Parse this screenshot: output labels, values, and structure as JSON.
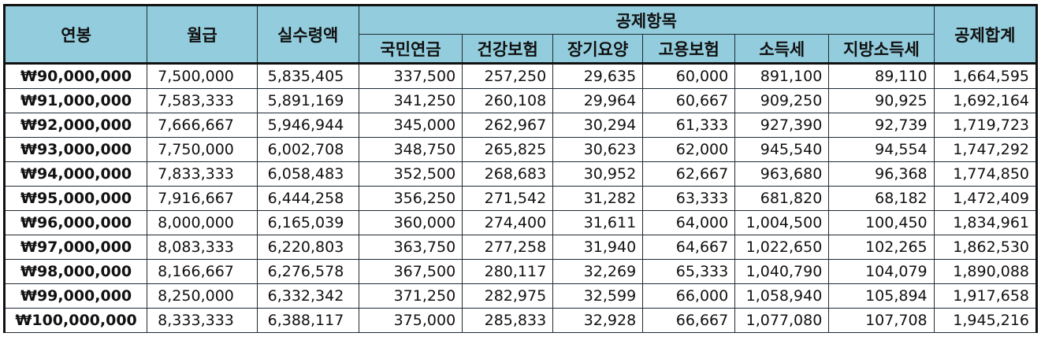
{
  "headers": {
    "salary": "연봉",
    "monthly": "월급",
    "net": "실수령액",
    "deductions_group": "공제항목",
    "national_pension": "국민연금",
    "health_insurance": "건강보험",
    "long_term_care": "장기요양",
    "employment_insurance": "고용보험",
    "income_tax": "소득세",
    "local_income_tax": "지방소득세",
    "total": "공제합계"
  },
  "rows": [
    [
      "₩90,000,000",
      "7,500,000",
      "5,835,405",
      "337,500",
      "257,250",
      "29,635",
      "60,000",
      "891,100",
      "89,110",
      "1,664,595"
    ],
    [
      "₩91,000,000",
      "7,583,333",
      "5,891,169",
      "341,250",
      "260,108",
      "29,964",
      "60,667",
      "909,250",
      "90,925",
      "1,692,164"
    ],
    [
      "₩92,000,000",
      "7,666,667",
      "5,946,944",
      "345,000",
      "262,967",
      "30,294",
      "61,333",
      "927,390",
      "92,739",
      "1,719,723"
    ],
    [
      "₩93,000,000",
      "7,750,000",
      "6,002,708",
      "348,750",
      "265,825",
      "30,623",
      "62,000",
      "945,540",
      "94,554",
      "1,747,292"
    ],
    [
      "₩94,000,000",
      "7,833,333",
      "6,058,483",
      "352,500",
      "268,683",
      "30,952",
      "62,667",
      "963,680",
      "96,368",
      "1,774,850"
    ],
    [
      "₩95,000,000",
      "7,916,667",
      "6,444,258",
      "356,250",
      "271,542",
      "31,282",
      "63,333",
      "681,820",
      "68,182",
      "1,472,409"
    ],
    [
      "₩96,000,000",
      "8,000,000",
      "6,165,039",
      "360,000",
      "274,400",
      "31,611",
      "64,000",
      "1,004,500",
      "100,450",
      "1,834,961"
    ],
    [
      "₩97,000,000",
      "8,083,333",
      "6,220,803",
      "363,750",
      "277,258",
      "31,940",
      "64,667",
      "1,022,650",
      "102,265",
      "1,862,530"
    ],
    [
      "₩98,000,000",
      "8,166,667",
      "6,276,578",
      "367,500",
      "280,117",
      "32,269",
      "65,333",
      "1,040,790",
      "104,079",
      "1,890,088"
    ],
    [
      "₩99,000,000",
      "8,250,000",
      "6,332,342",
      "371,250",
      "282,975",
      "32,599",
      "66,000",
      "1,058,940",
      "105,894",
      "1,917,658"
    ],
    [
      "₩100,000,000",
      "8,333,333",
      "6,388,117",
      "375,000",
      "285,833",
      "32,928",
      "66,667",
      "1,077,080",
      "107,708",
      "1,945,216"
    ]
  ]
}
